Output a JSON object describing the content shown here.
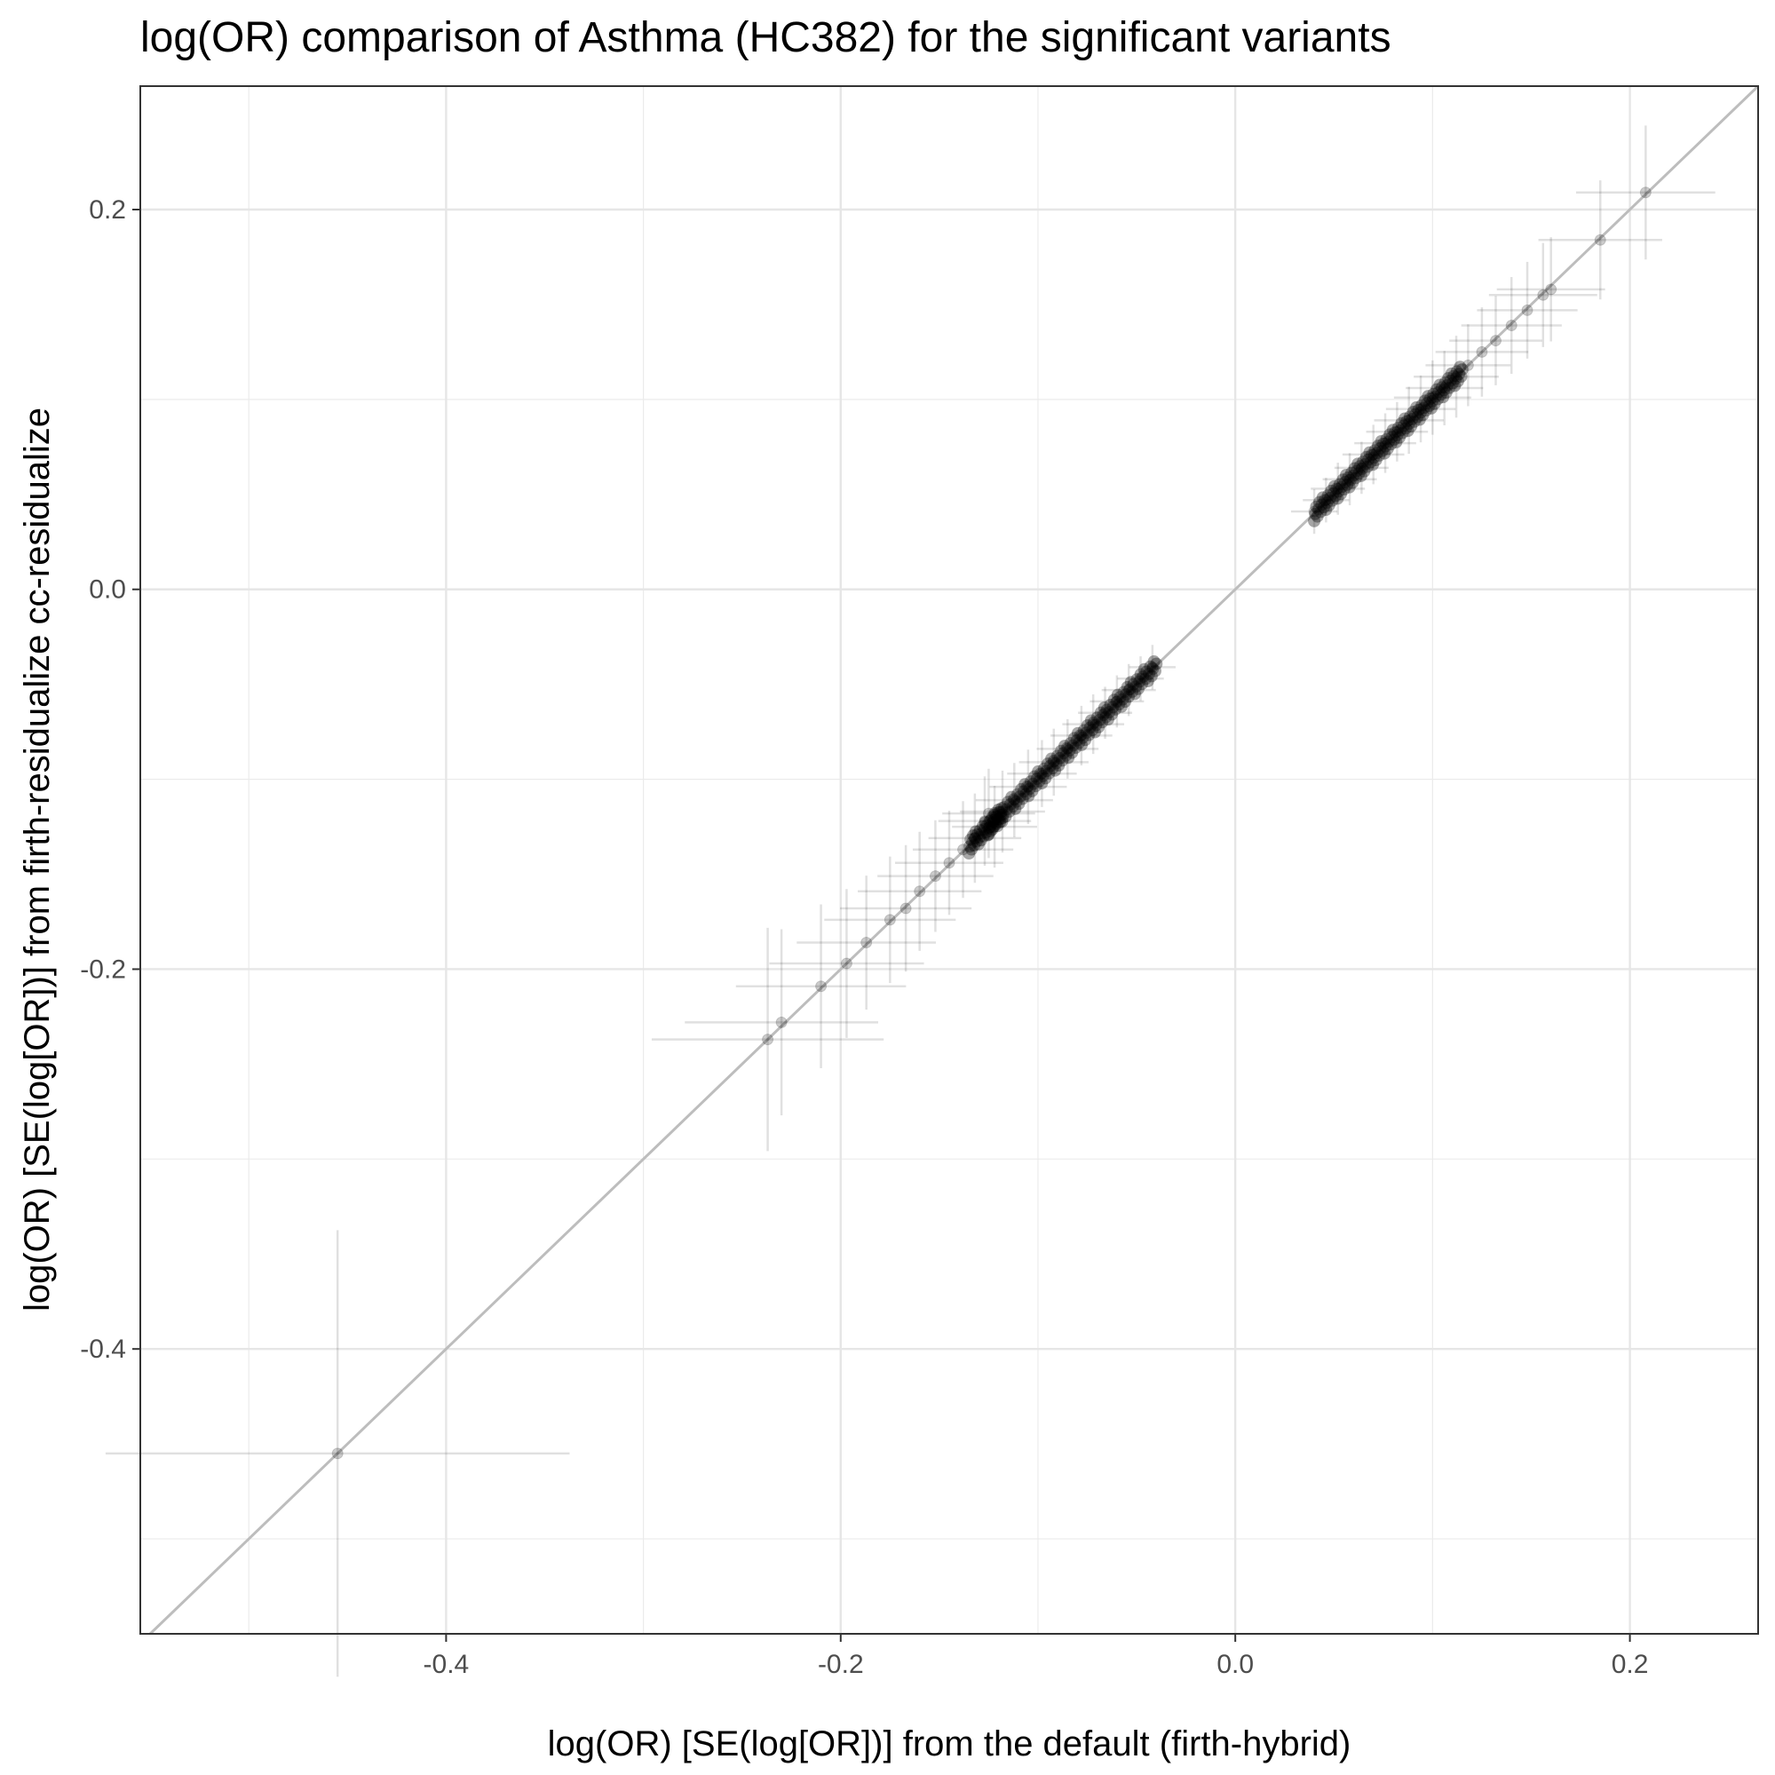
{
  "chart_data": {
    "type": "scatter",
    "title": "log(OR) comparison of Asthma (HC382) for the significant variants",
    "xlabel": "log(OR) [SE(log[OR])] from the default (firth-hybrid)",
    "ylabel": "log(OR) [SE(log[OR])] from firth-residualize cc-residualize",
    "xlim": [
      -0.555,
      0.265
    ],
    "ylim": [
      -0.55,
      0.265
    ],
    "x_ticks": [
      {
        "value": -0.4,
        "label": "-0.4"
      },
      {
        "value": -0.2,
        "label": "-0.2"
      },
      {
        "value": 0.0,
        "label": "0.0"
      },
      {
        "value": 0.2,
        "label": "0.2"
      }
    ],
    "y_ticks": [
      {
        "value": 0.2,
        "label": "0.2"
      },
      {
        "value": 0.0,
        "label": "0.0"
      },
      {
        "value": -0.2,
        "label": "-0.2"
      },
      {
        "value": -0.4,
        "label": "-0.4"
      }
    ],
    "grid": true,
    "reference_line": {
      "slope": 1,
      "intercept": 0,
      "color": "#bdbdbd"
    },
    "point_color": "#000000",
    "points": [
      {
        "x": -0.455,
        "y": -0.455,
        "se": 0.06
      },
      {
        "x": -0.237,
        "y": -0.237,
        "se": 0.03
      },
      {
        "x": -0.23,
        "y": -0.228,
        "se": 0.025
      },
      {
        "x": -0.21,
        "y": -0.209,
        "se": 0.022
      },
      {
        "x": -0.197,
        "y": -0.197,
        "se": 0.02
      },
      {
        "x": -0.187,
        "y": -0.186,
        "se": 0.018
      },
      {
        "x": -0.175,
        "y": -0.174,
        "se": 0.017
      },
      {
        "x": -0.167,
        "y": -0.168,
        "se": 0.017
      },
      {
        "x": -0.16,
        "y": -0.159,
        "se": 0.016
      },
      {
        "x": -0.152,
        "y": -0.151,
        "se": 0.015
      },
      {
        "x": -0.145,
        "y": -0.144,
        "se": 0.014
      },
      {
        "x": -0.138,
        "y": -0.137,
        "se": 0.013
      },
      {
        "x": -0.132,
        "y": -0.131,
        "se": 0.012
      },
      {
        "x": -0.127,
        "y": -0.122,
        "se": 0.012
      },
      {
        "x": -0.125,
        "y": -0.118,
        "se": 0.012
      },
      {
        "x": -0.122,
        "y": -0.125,
        "se": 0.011
      },
      {
        "x": -0.118,
        "y": -0.117,
        "se": 0.011
      },
      {
        "x": -0.112,
        "y": -0.111,
        "se": 0.01
      },
      {
        "x": -0.105,
        "y": -0.104,
        "se": 0.01
      },
      {
        "x": -0.098,
        "y": -0.097,
        "se": 0.009
      },
      {
        "x": -0.092,
        "y": -0.091,
        "se": 0.009
      },
      {
        "x": -0.085,
        "y": -0.084,
        "se": 0.008
      },
      {
        "x": -0.078,
        "y": -0.077,
        "se": 0.008
      },
      {
        "x": -0.072,
        "y": -0.071,
        "se": 0.008
      },
      {
        "x": -0.066,
        "y": -0.065,
        "se": 0.007
      },
      {
        "x": -0.06,
        "y": -0.059,
        "se": 0.007
      },
      {
        "x": -0.054,
        "y": -0.053,
        "se": 0.007
      },
      {
        "x": -0.048,
        "y": -0.047,
        "se": 0.006
      },
      {
        "x": -0.042,
        "y": -0.041,
        "se": 0.006
      },
      {
        "x": 0.04,
        "y": 0.041,
        "se": 0.006
      },
      {
        "x": 0.046,
        "y": 0.047,
        "se": 0.006
      },
      {
        "x": 0.052,
        "y": 0.053,
        "se": 0.007
      },
      {
        "x": 0.058,
        "y": 0.058,
        "se": 0.007
      },
      {
        "x": 0.064,
        "y": 0.064,
        "se": 0.007
      },
      {
        "x": 0.07,
        "y": 0.071,
        "se": 0.008
      },
      {
        "x": 0.076,
        "y": 0.077,
        "se": 0.008
      },
      {
        "x": 0.082,
        "y": 0.083,
        "se": 0.008
      },
      {
        "x": 0.088,
        "y": 0.089,
        "se": 0.009
      },
      {
        "x": 0.094,
        "y": 0.095,
        "se": 0.009
      },
      {
        "x": 0.1,
        "y": 0.101,
        "se": 0.01
      },
      {
        "x": 0.106,
        "y": 0.106,
        "se": 0.01
      },
      {
        "x": 0.112,
        "y": 0.112,
        "se": 0.011
      },
      {
        "x": 0.118,
        "y": 0.118,
        "se": 0.011
      },
      {
        "x": 0.125,
        "y": 0.125,
        "se": 0.012
      },
      {
        "x": 0.132,
        "y": 0.131,
        "se": 0.012
      },
      {
        "x": 0.14,
        "y": 0.139,
        "se": 0.013
      },
      {
        "x": 0.148,
        "y": 0.147,
        "se": 0.013
      },
      {
        "x": 0.156,
        "y": 0.155,
        "se": 0.014
      },
      {
        "x": 0.16,
        "y": 0.158,
        "se": 0.014
      },
      {
        "x": 0.185,
        "y": 0.184,
        "se": 0.016
      },
      {
        "x": 0.208,
        "y": 0.209,
        "se": 0.018
      }
    ]
  }
}
